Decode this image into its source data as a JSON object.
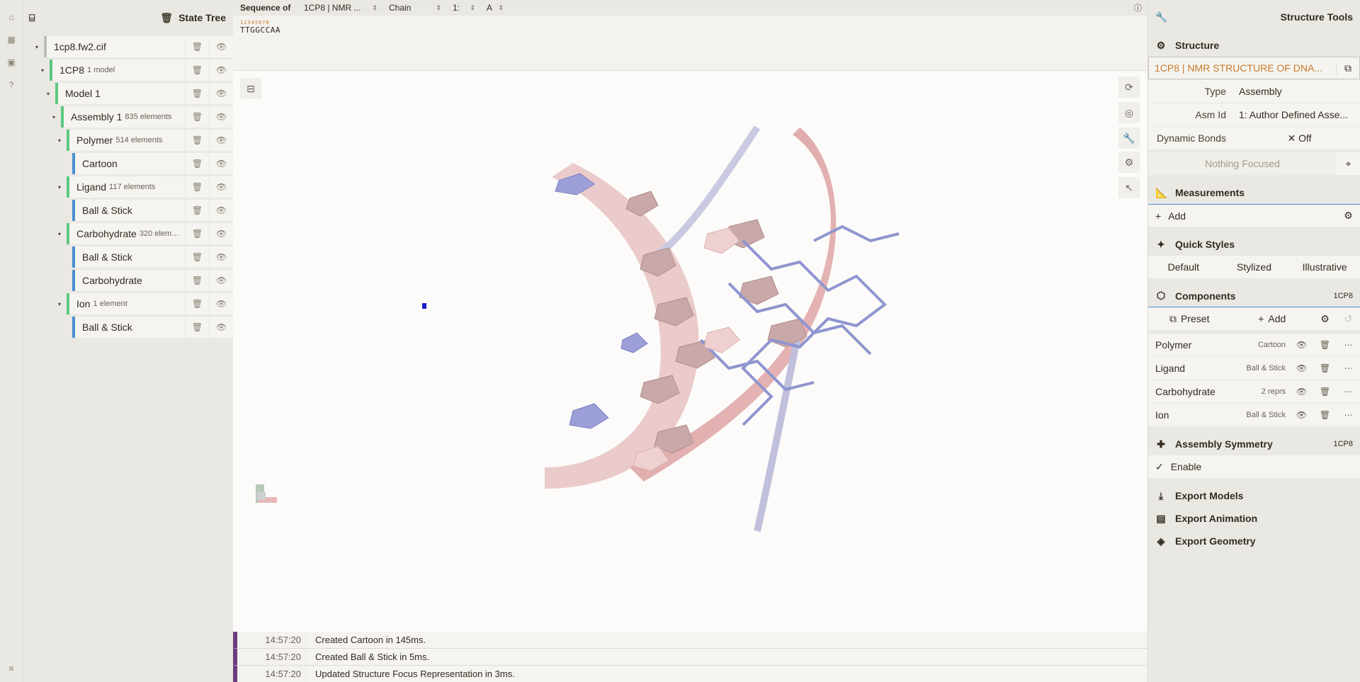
{
  "state_tree": {
    "title": "State Tree",
    "nodes": [
      {
        "label": "1cp8.fw2.cif",
        "sub": ""
      },
      {
        "label": "1CP8",
        "sub": "1 model"
      },
      {
        "label": "Model 1",
        "sub": ""
      },
      {
        "label": "Assembly 1",
        "sub": "835 elements"
      },
      {
        "label": "Polymer",
        "sub": "514 elements"
      },
      {
        "label": "Cartoon",
        "sub": ""
      },
      {
        "label": "Ligand",
        "sub": "117 elements"
      },
      {
        "label": "Ball & Stick",
        "sub": ""
      },
      {
        "label": "Carbohydrate",
        "sub": "320 elem…"
      },
      {
        "label": "Ball & Stick",
        "sub": ""
      },
      {
        "label": "Carbohydrate",
        "sub": ""
      },
      {
        "label": "Ion",
        "sub": "1 element"
      },
      {
        "label": "Ball & Stick",
        "sub": ""
      }
    ]
  },
  "sequence": {
    "label": "Sequence of",
    "entity": "1CP8 | NMR ...",
    "chain_label": "Chain",
    "chain_id": "1:",
    "chain_name": "A",
    "numbers": "12345678",
    "residues": "TTGGCCAA"
  },
  "log": [
    {
      "time": "14:57:20",
      "msg": "Created Cartoon in 145ms."
    },
    {
      "time": "14:57:20",
      "msg": "Created Ball & Stick in 5ms."
    },
    {
      "time": "14:57:20",
      "msg": "Updated Structure Focus Representation in 3ms."
    }
  ],
  "tools": {
    "title": "Structure Tools",
    "structure": {
      "header": "Structure",
      "name": "1CP8 | NMR STRUCTURE OF DNA...",
      "type_label": "Type",
      "type_value": "Assembly",
      "asm_label": "Asm Id",
      "asm_value": "1: Author Defined Asse...",
      "bonds_label": "Dynamic Bonds",
      "bonds_value": "Off",
      "focus": "Nothing Focused"
    },
    "measurements": {
      "header": "Measurements",
      "add": "Add"
    },
    "quick_styles": {
      "header": "Quick Styles",
      "options": [
        "Default",
        "Stylized",
        "Illustrative"
      ]
    },
    "components": {
      "header": "Components",
      "tag": "1CP8",
      "preset": "Preset",
      "add": "Add",
      "items": [
        {
          "name": "Polymer",
          "repr": "Cartoon"
        },
        {
          "name": "Ligand",
          "repr": "Ball & Stick"
        },
        {
          "name": "Carbohydrate",
          "repr": "2 reprs"
        },
        {
          "name": "Ion",
          "repr": "Ball & Stick"
        }
      ]
    },
    "symmetry": {
      "header": "Assembly Symmetry",
      "tag": "1CP8",
      "enable": "Enable"
    },
    "exports": [
      "Export Models",
      "Export Animation",
      "Export Geometry"
    ]
  },
  "colors": {
    "accent": "#c87a2a",
    "tree_green": "#5cc87f",
    "tree_blue": "#4a8fd1",
    "log_purple": "#6a3d7d"
  }
}
